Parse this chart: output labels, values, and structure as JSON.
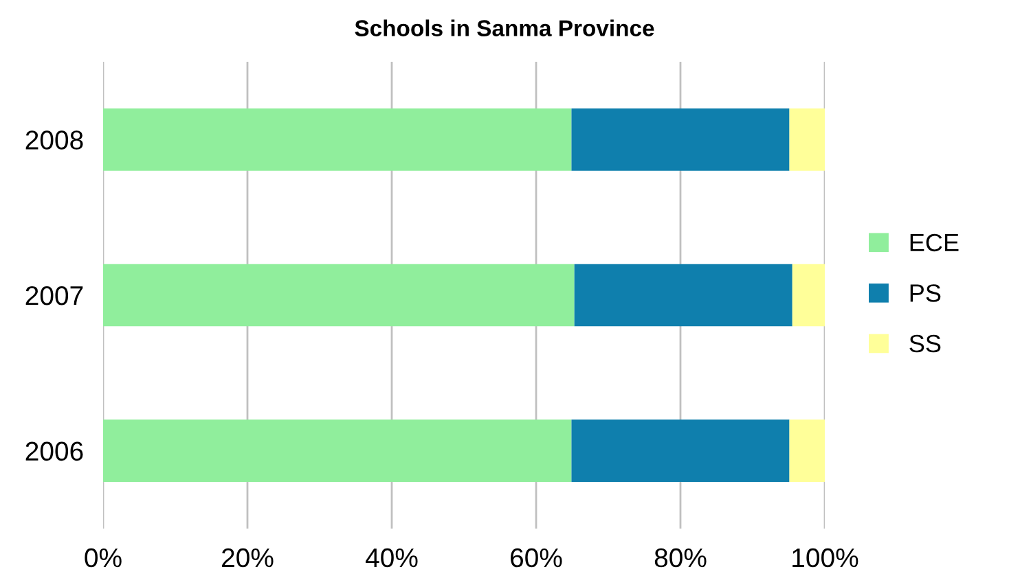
{
  "chart_data": {
    "type": "bar",
    "title": "Schools in Sanma Province",
    "orientation": "horizontal",
    "stacked": true,
    "categories": [
      "2008",
      "2007",
      "2006"
    ],
    "series": [
      {
        "name": "ECE",
        "color": "#90ee9c",
        "values": [
          64.9,
          65.3,
          64.9
        ]
      },
      {
        "name": "PS",
        "color": "#0f7fad",
        "values": [
          30.2,
          30.2,
          30.2
        ]
      },
      {
        "name": "SS",
        "color": "#ffff99",
        "values": [
          4.9,
          4.5,
          4.9
        ]
      }
    ],
    "xlim": [
      0,
      100
    ],
    "xticks": [
      {
        "value": 0,
        "label": "0%"
      },
      {
        "value": 20,
        "label": "20%"
      },
      {
        "value": 40,
        "label": "40%"
      },
      {
        "value": 60,
        "label": "60%"
      },
      {
        "value": 80,
        "label": "80%"
      },
      {
        "value": 100,
        "label": "100%"
      }
    ],
    "grid": "x",
    "legend": "right"
  }
}
